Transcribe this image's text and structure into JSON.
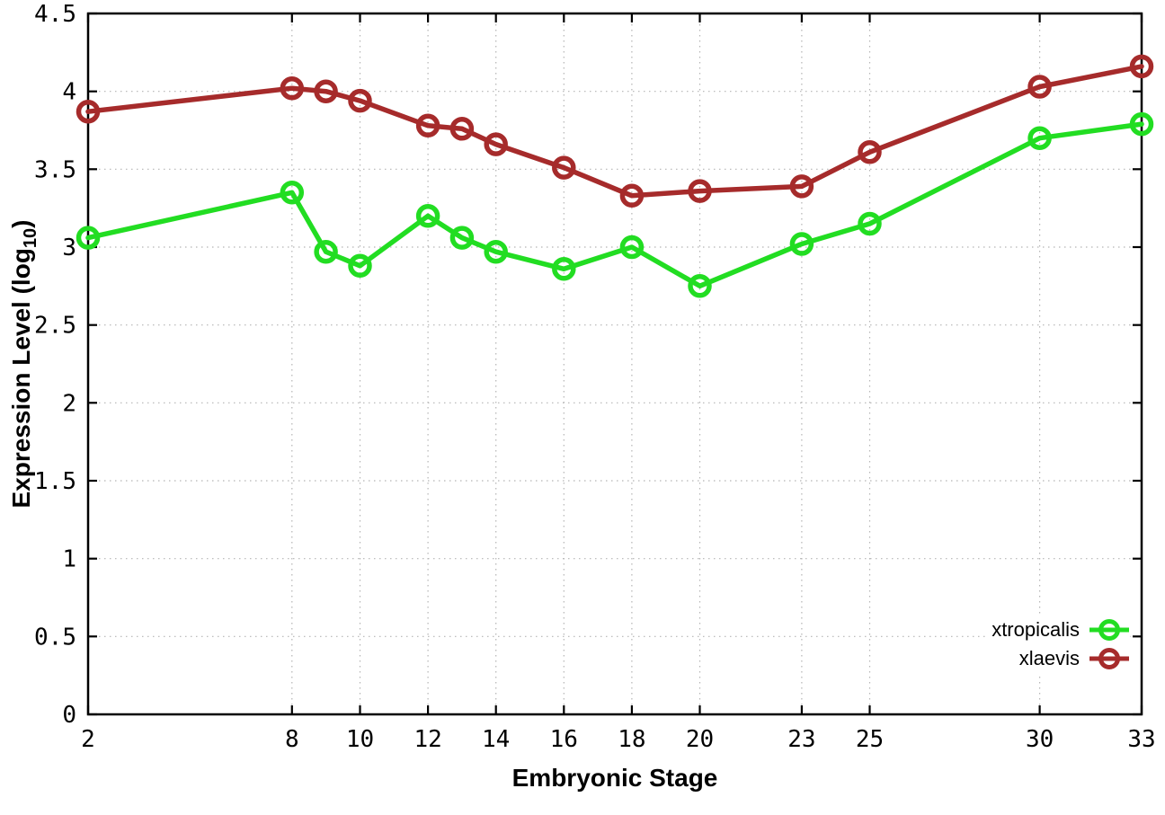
{
  "chart_data": {
    "type": "line",
    "title": "",
    "xlabel": "Embryonic Stage",
    "ylabel": "Expression Level (log10)",
    "ylabel_parts": {
      "main": "Expression Level (log",
      "sub": "10",
      "close": ")"
    },
    "x": [
      2,
      8,
      9,
      10,
      12,
      13,
      14,
      16,
      18,
      20,
      23,
      25,
      30,
      33
    ],
    "xticks": [
      2,
      8,
      10,
      12,
      14,
      16,
      18,
      20,
      23,
      25,
      30,
      33
    ],
    "yticks": [
      0,
      0.5,
      1,
      1.5,
      2,
      2.5,
      3,
      3.5,
      4,
      4.5
    ],
    "ytick_labels": [
      "0",
      "0.5",
      "1",
      "1.5",
      "2",
      "2.5",
      "3",
      "3.5",
      "4",
      "4.5"
    ],
    "xlim": [
      2,
      33
    ],
    "ylim": [
      0,
      4.5
    ],
    "grid": true,
    "legend_position": "bottom-right",
    "marker": "open-circle",
    "series": [
      {
        "name": "xtropicalis",
        "color": "#22dd22",
        "values": [
          3.06,
          3.35,
          2.97,
          2.88,
          3.2,
          3.06,
          2.97,
          2.86,
          3.0,
          2.75,
          3.02,
          3.15,
          3.7,
          3.79
        ]
      },
      {
        "name": "xlaevis",
        "color": "#a62b2b",
        "values": [
          3.87,
          4.02,
          4.0,
          3.94,
          3.78,
          3.76,
          3.66,
          3.51,
          3.33,
          3.36,
          3.39,
          3.61,
          4.03,
          4.16
        ]
      }
    ]
  },
  "colors": {
    "background": "#ffffff",
    "axis": "#000000",
    "grid": "#b4b4b4",
    "text": "#000000"
  }
}
